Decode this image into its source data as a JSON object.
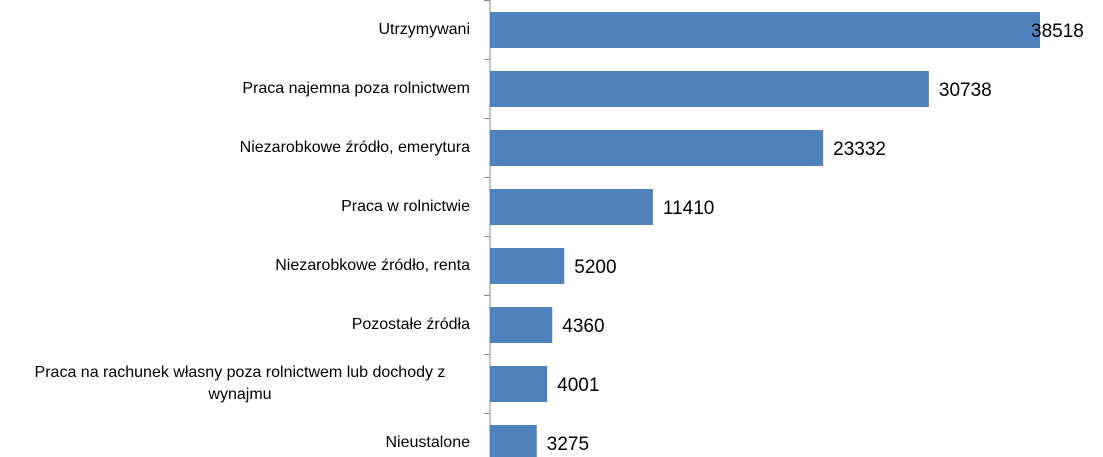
{
  "chart_data": {
    "type": "bar",
    "orientation": "horizontal",
    "color": "#4f81bd",
    "categories": [
      "Utrzymywani",
      "Praca najemna poza rolnictwem",
      "Niezarobkowe źródło, emerytura",
      "Praca w rolnictwie",
      "Niezarobkowe źródło, renta",
      "Pozostałe źródła",
      "Praca na rachunek własny poza rolnictwem lub dochody z wynajmu",
      "Nieustalone"
    ],
    "values": [
      38518,
      30738,
      23332,
      11410,
      5200,
      4360,
      4001,
      3275
    ]
  }
}
